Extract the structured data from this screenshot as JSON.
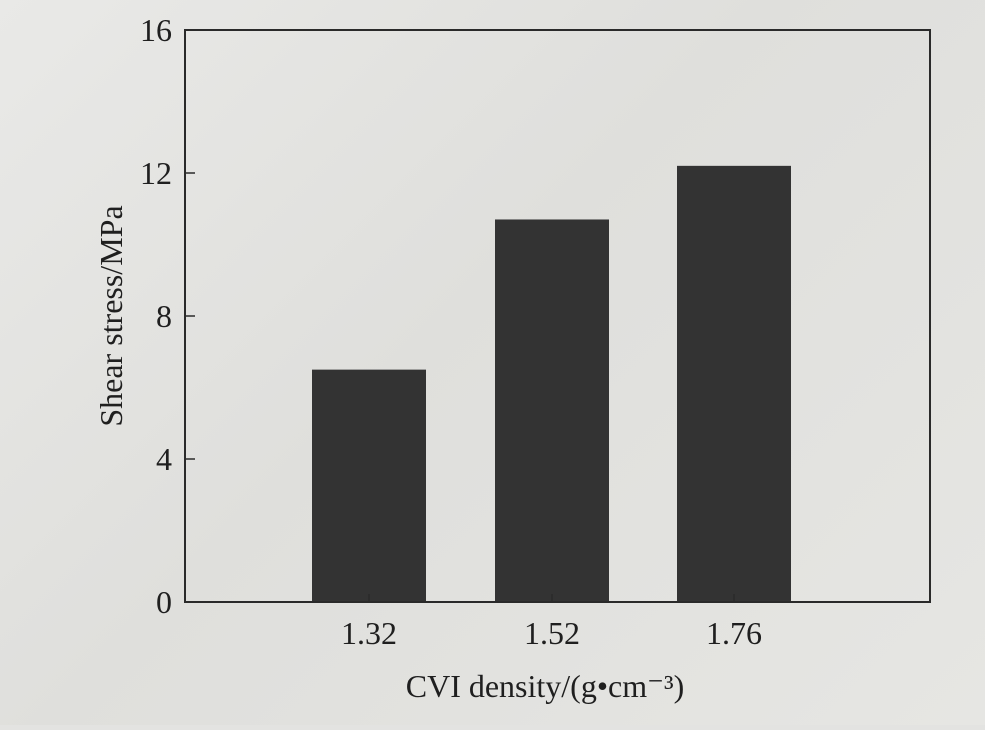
{
  "chart_data": {
    "type": "bar",
    "categories": [
      "1.32",
      "1.52",
      "1.76"
    ],
    "values": [
      6.5,
      10.7,
      12.2
    ],
    "xlabel": "CVI density/(g•cm⁻³)",
    "ylabel": "Shear stress/MPa",
    "ylim": [
      0,
      16
    ],
    "yticks": [
      "0",
      "4",
      "8",
      "12",
      "16"
    ],
    "grid": false,
    "legend": false
  },
  "colors": {
    "bar": "#333333",
    "axis": "#2a2a2a",
    "background": "#e3e3e1"
  }
}
